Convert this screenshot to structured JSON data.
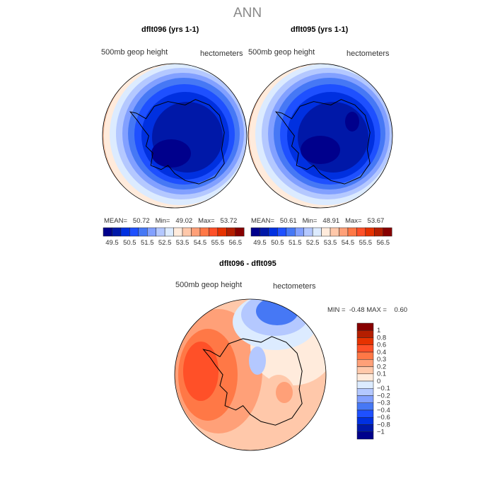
{
  "title": "ANN",
  "chart_data": [
    {
      "type": "heatmap",
      "title": "dflt096 (yrs 1-1)",
      "left_label": "500mb geop height",
      "right_label": "hectometers",
      "stats": {
        "mean_label": "MEAN=",
        "mean": "50.72",
        "min_label": "Min=",
        "min": "49.02",
        "max_label": "Max=",
        "max": "53.72"
      }
    },
    {
      "type": "heatmap",
      "title": "dflt095 (yrs 1-1)",
      "left_label": "500mb geop height",
      "right_label": "hectometers",
      "stats": {
        "mean_label": "MEAN=",
        "mean": "50.61",
        "min_label": "Min=",
        "min": "48.91",
        "max_label": "Max=",
        "max": "53.67"
      }
    },
    {
      "type": "heatmap",
      "title": "dflt096 - dflt095",
      "left_label": "500mb geop height",
      "right_label": "hectometers",
      "stats": {
        "min_label": "MIN =",
        "min": "-0.48",
        "max_label": "MAX =",
        "max": "0.60"
      }
    }
  ],
  "colorbar_top": {
    "labels": [
      "49.5",
      "50.5",
      "51.5",
      "52.5",
      "53.5",
      "54.5",
      "55.5",
      "56.5"
    ]
  },
  "colorbar_diff": {
    "labels": [
      "1",
      "0.8",
      "0.6",
      "0.4",
      "0.3",
      "0.2",
      "0.1",
      "0",
      "−0.1",
      "−0.2",
      "−0.3",
      "−0.4",
      "−0.6",
      "−0.8",
      "−1"
    ]
  },
  "colors": [
    "#00008c",
    "#0018a8",
    "#0030e0",
    "#1e50ff",
    "#4678f5",
    "#82a0ff",
    "#b4c8ff",
    "#dcebff",
    "#ffebdc",
    "#ffc8aa",
    "#ffa078",
    "#ff7846",
    "#ff5028",
    "#e63200",
    "#b41e00",
    "#870000"
  ]
}
